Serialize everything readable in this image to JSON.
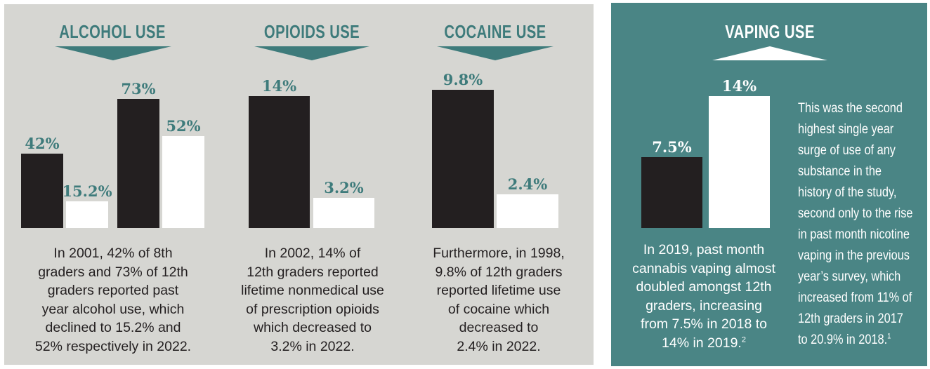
{
  "chart_data": [
    {
      "type": "bar",
      "title": "ALCOHOL USE",
      "trend": "down",
      "bars": [
        {
          "value": 42,
          "label": "42%",
          "style": "dark"
        },
        {
          "value": 15.2,
          "label": "15.2%",
          "style": "light"
        },
        {
          "value": 73,
          "label": "73%",
          "style": "dark"
        },
        {
          "value": 52,
          "label": "52%",
          "style": "light"
        }
      ],
      "description": [
        "In 2001, 42% of 8th",
        "graders and 73% of 12th",
        "graders reported past",
        "year alcohol use, which",
        "declined to 15.2% and",
        "52% respectively in 2022."
      ]
    },
    {
      "type": "bar",
      "title": "OPIOIDS USE",
      "trend": "down",
      "bars": [
        {
          "value": 14,
          "label": "14%",
          "style": "dark"
        },
        {
          "value": 3.2,
          "label": "3.2%",
          "style": "light"
        }
      ],
      "description": [
        "In 2002, 14% of",
        "12th graders reported",
        "lifetime nonmedical use",
        "of prescription opioids",
        "which decreased to",
        "3.2% in 2022."
      ]
    },
    {
      "type": "bar",
      "title": "COCAINE USE",
      "trend": "down",
      "bars": [
        {
          "value": 9.8,
          "label": "9.8%",
          "style": "dark"
        },
        {
          "value": 2.4,
          "label": "2.4%",
          "style": "light"
        }
      ],
      "description": [
        "Furthermore, in 1998,",
        "9.8% of 12th graders",
        "reported lifetime use",
        "of cocaine which",
        "decreased to",
        "2.4% in 2022."
      ]
    },
    {
      "type": "bar",
      "title": "VAPING USE",
      "trend": "up",
      "bars": [
        {
          "value": 7.5,
          "label": "7.5%",
          "style": "dark"
        },
        {
          "value": 14,
          "label": "14%",
          "style": "light"
        }
      ],
      "description": [
        "In 2019, past month",
        "cannabis vaping almost",
        "doubled amongst 12th",
        "graders, increasing",
        "from 7.5% in 2018 to",
        "14% in 2019."
      ],
      "description_footnote": "2"
    }
  ],
  "side_note": {
    "lines": [
      "This was the second",
      "highest single year",
      "surge of use of any",
      "substance in the",
      "history of the study,",
      "second only to the rise",
      "in past month nicotine",
      "vaping in the previous",
      "year’s survey, which",
      "increased from 11% of",
      "12th graders in 2017",
      "to 20.9% in 2018."
    ],
    "footnote": "1"
  },
  "colors": {
    "gray_panel": "#d6d6d2",
    "teal_panel": "#4a8585",
    "accent_teal": "#3e7b7b",
    "dark_bar": "#231f20",
    "light_bar": "#ffffff"
  }
}
